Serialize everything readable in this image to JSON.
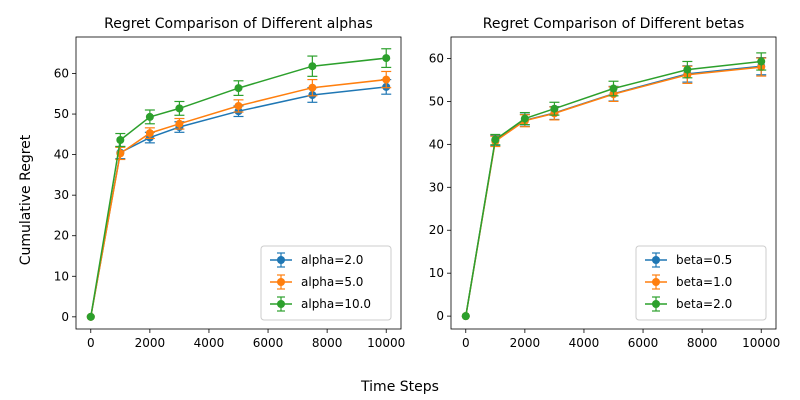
{
  "figure": {
    "ylabel": "Cumulative Regret",
    "xlabel": "Time Steps"
  },
  "chart_data": [
    {
      "type": "line",
      "title": "Regret Comparison of Different alphas",
      "xlim": [
        -500,
        10500
      ],
      "ylim": [
        -3,
        69
      ],
      "xticks": [
        0,
        2000,
        4000,
        6000,
        8000,
        10000
      ],
      "yticks": [
        0,
        10,
        20,
        30,
        40,
        50,
        60
      ],
      "x": [
        0,
        1000,
        2000,
        3000,
        5000,
        7500,
        10000
      ],
      "legend_position": "lower right",
      "series": [
        {
          "name": "alpha=2.0",
          "color": "#1f77b4",
          "values": [
            0,
            40.5,
            44.2,
            46.8,
            50.7,
            54.7,
            56.7
          ],
          "errors": [
            0,
            1.5,
            1.3,
            1.3,
            1.3,
            1.8,
            1.8
          ]
        },
        {
          "name": "alpha=5.0",
          "color": "#ff7f0e",
          "values": [
            0,
            40.3,
            45.3,
            47.6,
            52.0,
            56.5,
            58.5
          ],
          "errors": [
            0,
            1.5,
            1.3,
            1.3,
            1.5,
            2.0,
            2.0
          ]
        },
        {
          "name": "alpha=10.0",
          "color": "#2ca02c",
          "values": [
            0,
            43.6,
            49.3,
            51.4,
            56.4,
            61.8,
            63.8
          ],
          "errors": [
            0,
            1.6,
            1.7,
            1.7,
            1.8,
            2.5,
            2.3
          ]
        }
      ]
    },
    {
      "type": "line",
      "title": "Regret Comparison of Different betas",
      "xlim": [
        -500,
        10500
      ],
      "ylim": [
        -3,
        65
      ],
      "xticks": [
        0,
        2000,
        4000,
        6000,
        8000,
        10000
      ],
      "yticks": [
        0,
        10,
        20,
        30,
        40,
        50,
        60
      ],
      "x": [
        0,
        1000,
        2000,
        3000,
        5000,
        7500,
        10000
      ],
      "legend_position": "lower right",
      "series": [
        {
          "name": "beta=0.5",
          "color": "#1f77b4",
          "values": [
            0,
            40.9,
            45.6,
            47.3,
            51.8,
            56.4,
            58.2
          ],
          "errors": [
            0,
            1.2,
            1.4,
            1.5,
            1.7,
            1.9,
            2.0
          ]
        },
        {
          "name": " beta=1.0",
          "color": "#ff7f0e",
          "values": [
            0,
            40.7,
            45.5,
            47.2,
            51.7,
            56.2,
            58.0
          ],
          "errors": [
            0,
            1.2,
            1.4,
            1.5,
            1.7,
            2.0,
            2.1
          ]
        },
        {
          "name": "beta=2.0",
          "color": "#2ca02c",
          "values": [
            0,
            41.1,
            46.0,
            48.3,
            53.0,
            57.4,
            59.3
          ],
          "errors": [
            0,
            1.2,
            1.4,
            1.5,
            1.7,
            1.9,
            2.0
          ]
        }
      ]
    }
  ]
}
